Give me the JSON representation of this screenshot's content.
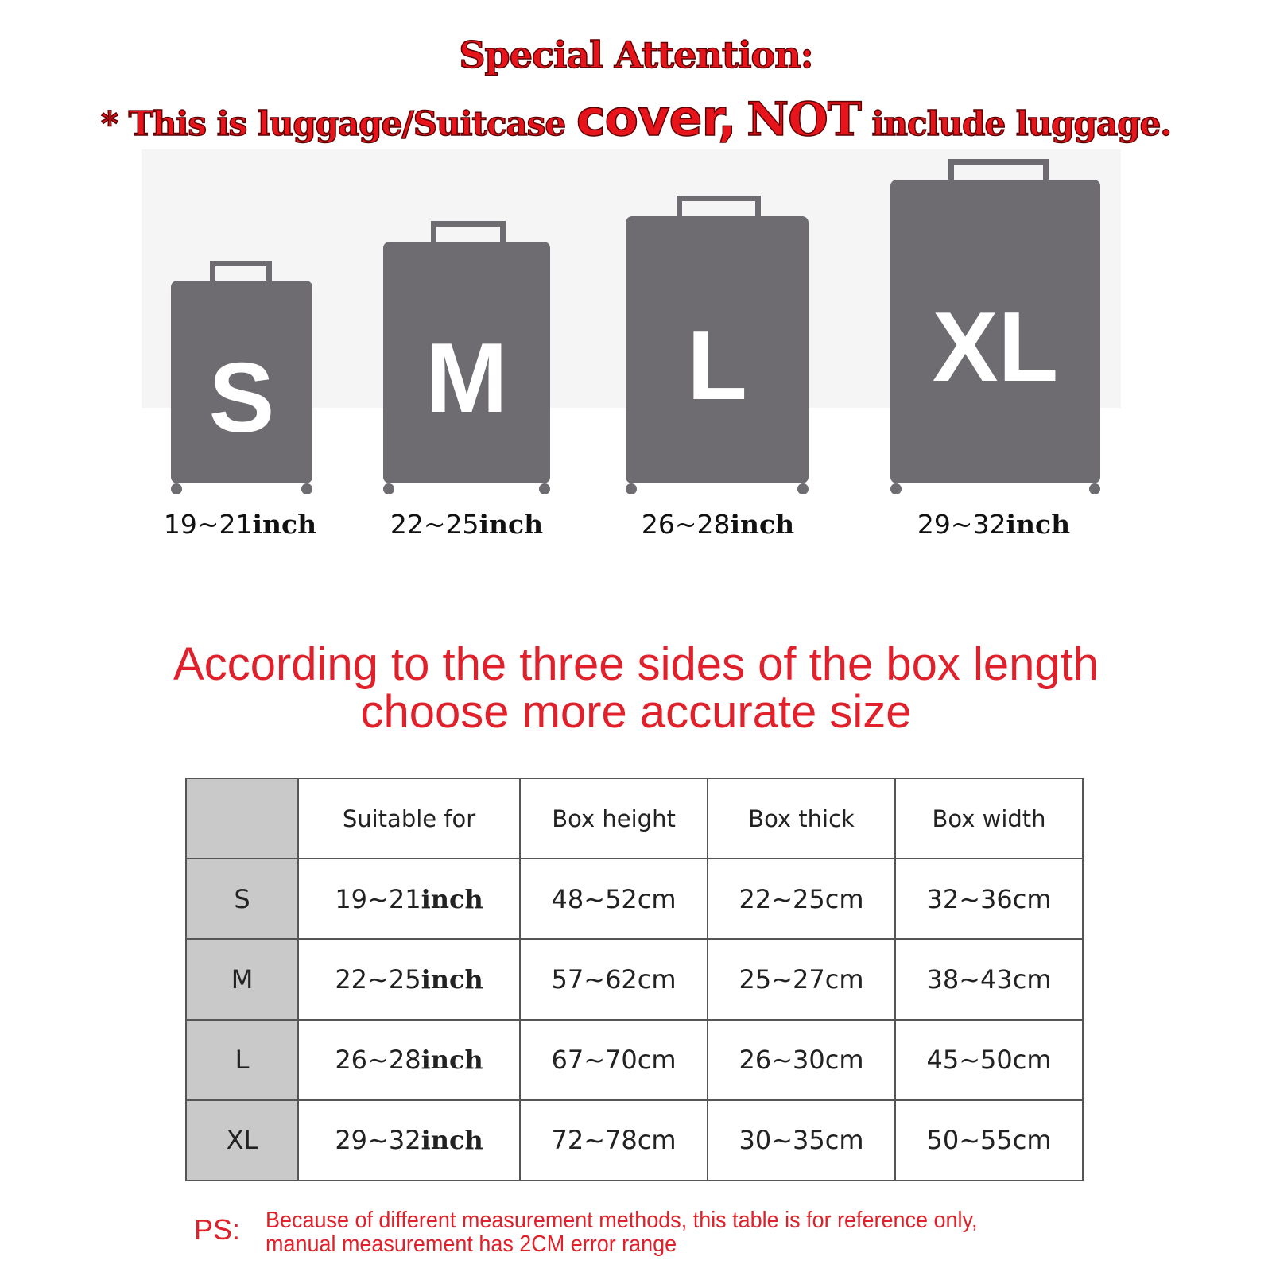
{
  "attention": {
    "title": "Special Attention:",
    "line_pre": "* This is luggage/Suitcase",
    "line_big": "cover,",
    "line_not": "NOT",
    "line_post": "include luggage."
  },
  "suitcases": [
    {
      "letter": "S",
      "range": "19~21",
      "unit": "inch"
    },
    {
      "letter": "M",
      "range": "22~25",
      "unit": "inch"
    },
    {
      "letter": "L",
      "range": "26~28",
      "unit": "inch"
    },
    {
      "letter": "XL",
      "range": "29~32",
      "unit": "inch"
    }
  ],
  "heading": {
    "line1": "According to the three sides of the box length",
    "line2": "choose more accurate size"
  },
  "table": {
    "headers": [
      "",
      "Suitable for",
      "Box height",
      "Box thick",
      "Box width"
    ],
    "rows": [
      {
        "size": "S",
        "suitable": "19~21",
        "unit": "inch",
        "height": "48~52cm",
        "thick": "22~25cm",
        "width": "32~36cm"
      },
      {
        "size": "M",
        "suitable": "22~25",
        "unit": "inch",
        "height": "57~62cm",
        "thick": "25~27cm",
        "width": "38~43cm"
      },
      {
        "size": "L",
        "suitable": "26~28",
        "unit": "inch",
        "height": "67~70cm",
        "thick": "26~30cm",
        "width": "45~50cm"
      },
      {
        "size": "XL",
        "suitable": "29~32",
        "unit": "inch",
        "height": "72~78cm",
        "thick": "30~35cm",
        "width": "50~55cm"
      }
    ]
  },
  "ps": {
    "label": "PS:",
    "line1": "Because of different measurement methods, this table is for reference only,",
    "line2": "manual measurement has 2CM error range"
  },
  "colors": {
    "red": "#e0202a",
    "case_gray": "#6e6c70",
    "header_gray": "#c9c9c9"
  }
}
